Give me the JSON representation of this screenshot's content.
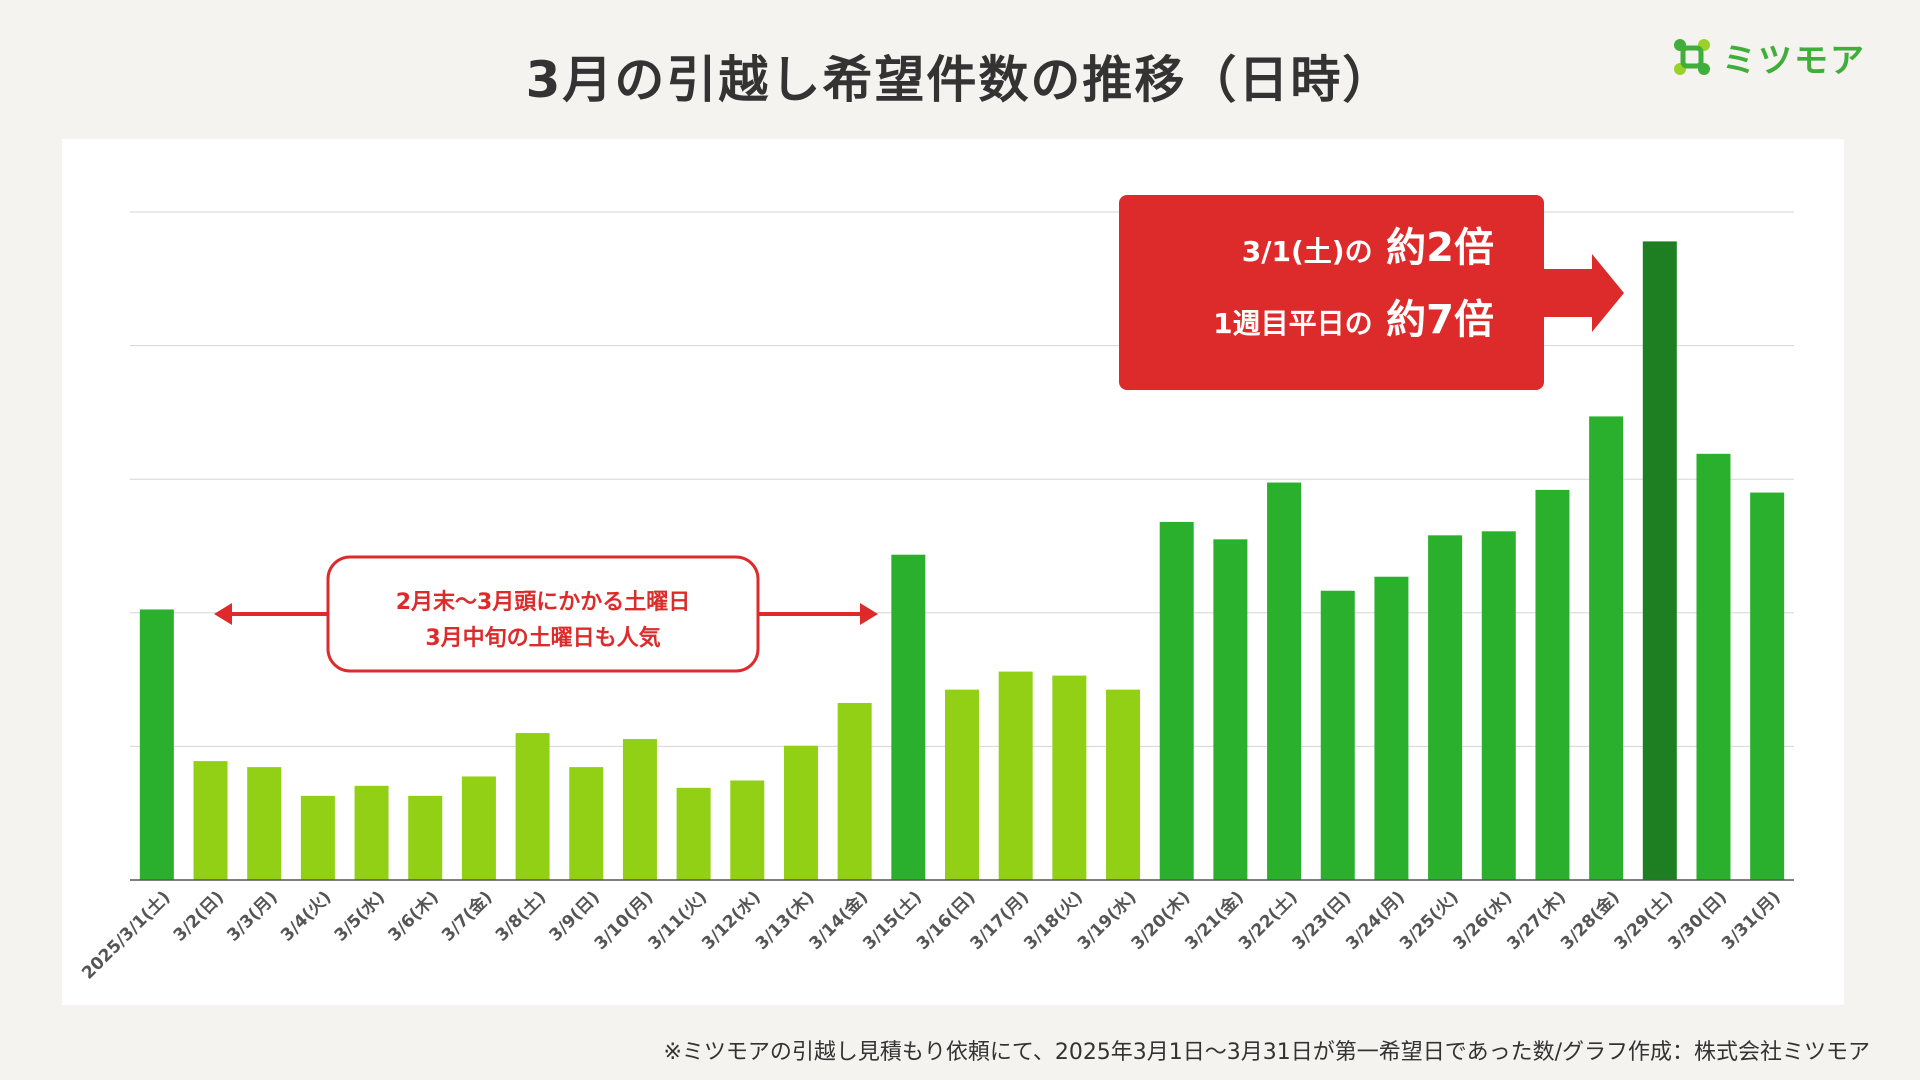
{
  "title": "3月の引越し希望件数の推移（日時）",
  "logo": {
    "text": "ミツモア",
    "icon": "mitsumore-logo-icon",
    "color": "#3fae3a"
  },
  "footnote": "※ミツモアの引越し見積もり依頼にて、2025年3月1日〜3月31日が第一希望日であった数/グラフ作成：株式会社ミツモア",
  "colors": {
    "weekday": "#92d015",
    "saturday": "#2bb02e",
    "late_march": "#2bb02e",
    "highlight": "#1e7e22",
    "accent_red": "#dd2b2b"
  },
  "callout": {
    "line1_small": "3/1(土)の",
    "line1_big": "約2倍",
    "line2_small": "1週目平日の",
    "line2_big": "約7倍"
  },
  "annotation": {
    "line1": "2月末〜3月頭にかかる土曜日",
    "line2": "3月中旬の土曜日も人気"
  },
  "chart_data": {
    "type": "bar",
    "title": "3月の引越し希望件数の推移（日時）",
    "xlabel": "",
    "ylabel": "",
    "y_axis_labels_shown": false,
    "grid": true,
    "gridline_count": 5,
    "ylim": [
      0,
      100
    ],
    "categories": [
      "2025/3/1(土)",
      "3/2(日)",
      "3/3(月)",
      "3/4(火)",
      "3/5(水)",
      "3/6(木)",
      "3/7(金)",
      "3/8(土)",
      "3/9(日)",
      "3/10(月)",
      "3/11(火)",
      "3/12(水)",
      "3/13(木)",
      "3/14(金)",
      "3/15(土)",
      "3/16(日)",
      "3/17(月)",
      "3/18(火)",
      "3/19(水)",
      "3/20(木)",
      "3/21(金)",
      "3/22(土)",
      "3/23(日)",
      "3/24(月)",
      "3/25(火)",
      "3/26(水)",
      "3/27(木)",
      "3/28(金)",
      "3/29(土)",
      "3/30(日)",
      "3/31(月)"
    ],
    "values": [
      40.5,
      17.8,
      16.9,
      12.6,
      14.1,
      12.6,
      15.5,
      22.0,
      16.9,
      21.1,
      13.8,
      14.9,
      20.1,
      26.5,
      48.7,
      28.5,
      31.2,
      30.6,
      28.5,
      53.6,
      51.0,
      59.5,
      43.3,
      45.4,
      51.6,
      52.2,
      58.4,
      69.4,
      95.6,
      63.8,
      58.0
    ],
    "bar_color_groups": [
      "saturday",
      "weekday",
      "weekday",
      "weekday",
      "weekday",
      "weekday",
      "weekday",
      "weekday",
      "weekday",
      "weekday",
      "weekday",
      "weekday",
      "weekday",
      "weekday",
      "saturday",
      "weekday",
      "weekday",
      "weekday",
      "weekday",
      "late_march",
      "late_march",
      "late_march",
      "late_march",
      "late_march",
      "late_march",
      "late_march",
      "late_march",
      "late_march",
      "highlight",
      "late_march",
      "late_march"
    ]
  }
}
